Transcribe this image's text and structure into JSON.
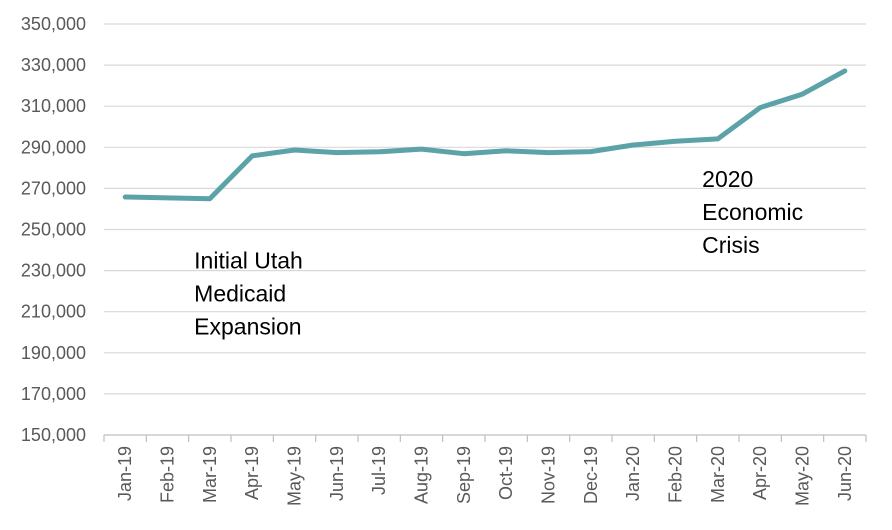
{
  "chart_data": {
    "type": "line",
    "title": "",
    "xlabel": "",
    "ylabel": "",
    "ylim": [
      150000,
      350000
    ],
    "yticks": [
      150000,
      170000,
      190000,
      210000,
      230000,
      250000,
      270000,
      290000,
      310000,
      330000,
      350000
    ],
    "ytick_labels": [
      "150,000",
      "170,000",
      "190,000",
      "210,000",
      "230,000",
      "250,000",
      "270,000",
      "290,000",
      "310,000",
      "330,000",
      "350,000"
    ],
    "grid": true,
    "legend": "none",
    "categories": [
      "Jan-19",
      "Feb-19",
      "Mar-19",
      "Apr-19",
      "May-19",
      "Jun-19",
      "Jul-19",
      "Aug-19",
      "Sep-19",
      "Oct-19",
      "Nov-19",
      "Dec-19",
      "Jan-20",
      "Feb-20",
      "Mar-20",
      "Apr-20",
      "May-20",
      "Jun-20"
    ],
    "series": [
      {
        "values": [
          265800,
          265400,
          265000,
          285800,
          288700,
          287400,
          287800,
          289100,
          286900,
          288300,
          287400,
          287900,
          291100,
          292900,
          294100,
          309300,
          315900,
          327200
        ],
        "color": "#5ba3a8"
      }
    ],
    "annotations": [
      {
        "lines": [
          "Initial Utah",
          "Medicaid",
          "Expansion"
        ],
        "category": "Apr-19",
        "anchor_value": 265000
      },
      {
        "lines": [
          "2020",
          "Economic",
          "Crisis"
        ],
        "category": "Apr-20",
        "anchor_value": 294100
      }
    ]
  }
}
